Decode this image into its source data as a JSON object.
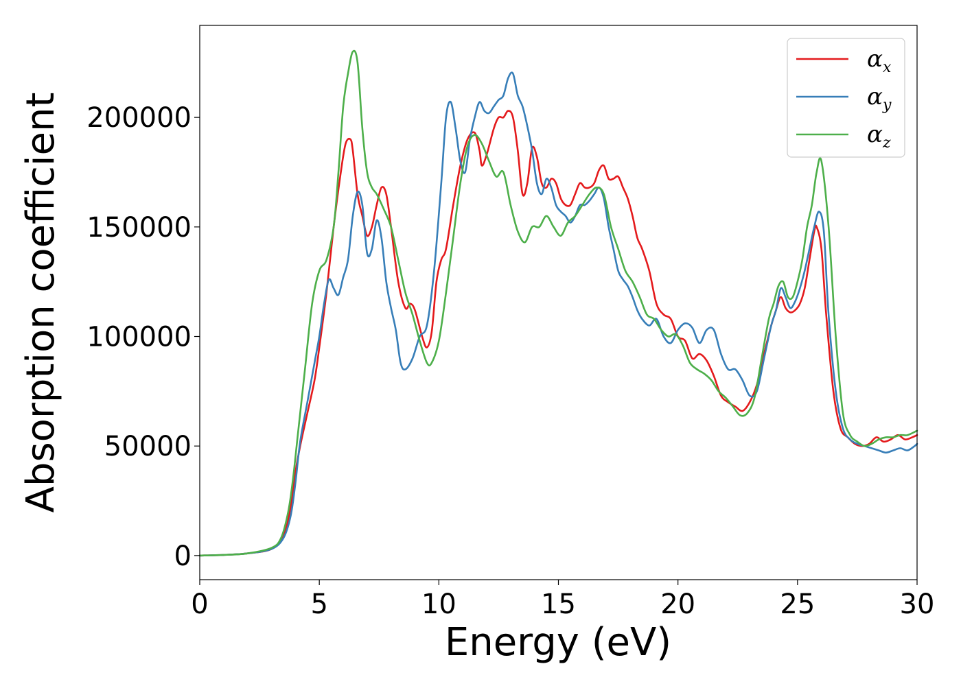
{
  "chart_data": {
    "type": "line",
    "title": "",
    "xlabel": "Energy (eV)",
    "ylabel": "Absorption coefficient",
    "xlim": [
      0,
      30
    ],
    "ylim": [
      -11000,
      242000
    ],
    "xticks": [
      0,
      5,
      10,
      15,
      20,
      25,
      30
    ],
    "yticks": [
      0,
      50000,
      100000,
      150000,
      200000
    ],
    "grid": false,
    "legend_position": "top-right",
    "series": [
      {
        "name": "αx",
        "name_base": "α",
        "name_sub": "x",
        "color": "#e41a1c",
        "x": [
          0,
          1,
          2,
          3,
          3.5,
          3.8,
          4.0,
          4.2,
          4.5,
          4.8,
          5.0,
          5.3,
          5.6,
          5.9,
          6.1,
          6.3,
          6.4,
          6.6,
          6.8,
          7.0,
          7.2,
          7.4,
          7.6,
          7.8,
          8.0,
          8.3,
          8.6,
          8.8,
          9.0,
          9.3,
          9.5,
          9.7,
          9.9,
          10.1,
          10.3,
          10.6,
          10.9,
          11.2,
          11.5,
          11.7,
          11.8,
          12.0,
          12.3,
          12.5,
          12.7,
          12.9,
          13.1,
          13.3,
          13.5,
          13.7,
          13.9,
          14.1,
          14.3,
          14.5,
          14.7,
          14.9,
          15.1,
          15.3,
          15.5,
          15.7,
          15.9,
          16.1,
          16.3,
          16.5,
          16.7,
          16.9,
          17.1,
          17.3,
          17.5,
          17.7,
          17.9,
          18.1,
          18.3,
          18.5,
          18.8,
          19.1,
          19.4,
          19.7,
          20.0,
          20.3,
          20.6,
          20.9,
          21.2,
          21.5,
          21.8,
          22.1,
          22.4,
          22.7,
          23.0,
          23.3,
          23.6,
          23.9,
          24.1,
          24.3,
          24.5,
          24.7,
          24.9,
          25.1,
          25.3,
          25.5,
          25.7,
          25.8,
          26.0,
          26.2,
          26.5,
          26.8,
          27.1,
          27.4,
          27.7,
          28.0,
          28.3,
          28.6,
          28.9,
          29.2,
          29.5,
          29.8,
          30.0
        ],
        "y": [
          0,
          300,
          1000,
          3000,
          9000,
          22000,
          38000,
          50000,
          65000,
          80000,
          95000,
          120000,
          150000,
          175000,
          188000,
          190000,
          185000,
          165000,
          155000,
          146000,
          150000,
          160000,
          168000,
          165000,
          150000,
          125000,
          113000,
          115000,
          112000,
          100000,
          95000,
          102000,
          125000,
          135000,
          140000,
          160000,
          178000,
          190000,
          193000,
          185000,
          178000,
          183000,
          195000,
          200000,
          200000,
          203000,
          200000,
          185000,
          165000,
          170000,
          186000,
          182000,
          170000,
          168000,
          172000,
          170000,
          163000,
          160000,
          160000,
          165000,
          170000,
          168000,
          168000,
          170000,
          176000,
          178000,
          172000,
          172000,
          173000,
          168000,
          163000,
          155000,
          145000,
          140000,
          130000,
          115000,
          110000,
          108000,
          100000,
          98000,
          90000,
          92000,
          89000,
          82000,
          73000,
          70000,
          68000,
          66000,
          70000,
          78000,
          92000,
          105000,
          112000,
          118000,
          113000,
          111000,
          112000,
          115000,
          122000,
          135000,
          148000,
          150000,
          140000,
          110000,
          75000,
          58000,
          54000,
          51000,
          50000,
          51000,
          54000,
          52000,
          53000,
          55000,
          53000,
          54000,
          55000
        ]
      },
      {
        "name": "αy",
        "name_base": "α",
        "name_sub": "y",
        "color": "#377eb8",
        "x": [
          0,
          1,
          2,
          3,
          3.5,
          3.8,
          4.0,
          4.2,
          4.5,
          4.8,
          5.0,
          5.2,
          5.4,
          5.6,
          5.8,
          6.0,
          6.2,
          6.4,
          6.6,
          6.8,
          7.0,
          7.2,
          7.4,
          7.6,
          7.8,
          8.0,
          8.2,
          8.4,
          8.6,
          8.9,
          9.2,
          9.5,
          9.8,
          10.1,
          10.3,
          10.5,
          10.7,
          10.9,
          11.1,
          11.3,
          11.5,
          11.7,
          11.9,
          12.1,
          12.3,
          12.5,
          12.7,
          12.9,
          13.1,
          13.3,
          13.5,
          13.7,
          13.9,
          14.1,
          14.3,
          14.5,
          14.7,
          14.9,
          15.1,
          15.3,
          15.5,
          15.7,
          15.9,
          16.1,
          16.3,
          16.5,
          16.7,
          16.9,
          17.1,
          17.3,
          17.5,
          17.7,
          17.9,
          18.1,
          18.3,
          18.5,
          18.8,
          19.1,
          19.4,
          19.7,
          20.0,
          20.3,
          20.6,
          20.9,
          21.2,
          21.5,
          21.8,
          22.1,
          22.4,
          22.7,
          23.0,
          23.3,
          23.6,
          23.9,
          24.1,
          24.3,
          24.5,
          24.7,
          24.9,
          25.1,
          25.3,
          25.5,
          25.7,
          25.9,
          26.1,
          26.3,
          26.6,
          26.9,
          27.2,
          27.5,
          27.8,
          28.1,
          28.4,
          28.7,
          29.0,
          29.3,
          29.6,
          29.9,
          30.0
        ],
        "y": [
          0,
          300,
          1000,
          3000,
          8000,
          18000,
          33000,
          52000,
          70000,
          88000,
          100000,
          115000,
          126000,
          122000,
          119000,
          127000,
          135000,
          155000,
          166000,
          160000,
          138000,
          140000,
          153000,
          145000,
          125000,
          113000,
          103000,
          88000,
          85000,
          90000,
          100000,
          105000,
          130000,
          170000,
          200000,
          207000,
          195000,
          180000,
          175000,
          190000,
          200000,
          207000,
          203000,
          202000,
          205000,
          208000,
          210000,
          218000,
          220000,
          210000,
          205000,
          196000,
          185000,
          170000,
          165000,
          172000,
          168000,
          160000,
          157000,
          155000,
          152000,
          155000,
          160000,
          160000,
          162000,
          165000,
          168000,
          163000,
          150000,
          140000,
          130000,
          126000,
          123000,
          118000,
          112000,
          108000,
          105000,
          108000,
          100000,
          97000,
          103000,
          106000,
          104000,
          97000,
          103000,
          103000,
          92000,
          85000,
          85000,
          80000,
          73000,
          75000,
          90000,
          105000,
          112000,
          122000,
          118000,
          113000,
          116000,
          122000,
          130000,
          140000,
          150000,
          157000,
          148000,
          110000,
          75000,
          58000,
          53000,
          51000,
          50000,
          49000,
          48000,
          47000,
          48000,
          49000,
          48000,
          50000,
          51000
        ]
      },
      {
        "name": "αz",
        "name_base": "α",
        "name_sub": "z",
        "color": "#4daf4a",
        "x": [
          0,
          1,
          2,
          3,
          3.4,
          3.7,
          3.9,
          4.1,
          4.4,
          4.7,
          5.0,
          5.3,
          5.6,
          5.8,
          6.0,
          6.2,
          6.4,
          6.6,
          6.8,
          7.0,
          7.2,
          7.4,
          7.7,
          8.0,
          8.3,
          8.6,
          8.9,
          9.2,
          9.5,
          9.7,
          10.0,
          10.3,
          10.6,
          10.9,
          11.2,
          11.5,
          11.8,
          12.1,
          12.4,
          12.7,
          13.0,
          13.3,
          13.6,
          13.9,
          14.2,
          14.5,
          14.8,
          15.1,
          15.4,
          15.7,
          16.0,
          16.3,
          16.6,
          16.9,
          17.2,
          17.5,
          17.8,
          18.1,
          18.4,
          18.7,
          19.0,
          19.3,
          19.6,
          19.9,
          20.2,
          20.5,
          20.8,
          21.1,
          21.4,
          21.7,
          22.0,
          22.3,
          22.6,
          22.9,
          23.2,
          23.5,
          23.8,
          24.0,
          24.2,
          24.4,
          24.6,
          24.8,
          25.0,
          25.2,
          25.4,
          25.6,
          25.8,
          26.0,
          26.3,
          26.6,
          26.9,
          27.2,
          27.5,
          27.8,
          28.1,
          28.4,
          28.7,
          29.0,
          29.3,
          29.6,
          30.0
        ],
        "y": [
          0,
          300,
          1000,
          3500,
          8000,
          20000,
          35000,
          55000,
          85000,
          115000,
          130000,
          135000,
          150000,
          175000,
          205000,
          220000,
          230000,
          225000,
          195000,
          175000,
          168000,
          165000,
          158000,
          150000,
          135000,
          120000,
          110000,
          98000,
          88000,
          88000,
          98000,
          120000,
          145000,
          170000,
          187000,
          192000,
          188000,
          180000,
          173000,
          175000,
          160000,
          148000,
          143000,
          150000,
          150000,
          155000,
          150000,
          146000,
          152000,
          155000,
          160000,
          165000,
          168000,
          165000,
          150000,
          140000,
          130000,
          125000,
          118000,
          110000,
          108000,
          103000,
          100000,
          101000,
          96000,
          88000,
          85000,
          83000,
          80000,
          75000,
          72000,
          68000,
          64000,
          65000,
          72000,
          90000,
          108000,
          115000,
          123000,
          125000,
          118000,
          118000,
          125000,
          135000,
          150000,
          160000,
          175000,
          180000,
          150000,
          100000,
          65000,
          55000,
          52000,
          50000,
          51000,
          53000,
          54000,
          54000,
          55000,
          55000,
          57000
        ]
      }
    ]
  }
}
